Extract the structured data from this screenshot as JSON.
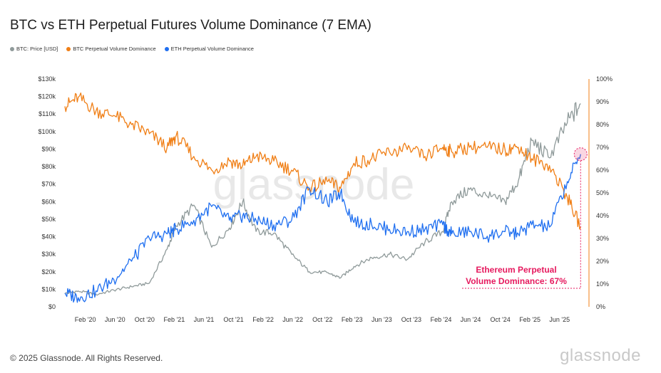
{
  "title": "BTC vs ETH Perpetual Futures Volume Dominance (7 EMA)",
  "legend": [
    {
      "label": "BTC: Price [USD]",
      "color": "#8f9a9a"
    },
    {
      "label": "BTC Perpetual Volume Dominance",
      "color": "#f07f16"
    },
    {
      "label": "ETH Perpetual Volume Dominance",
      "color": "#1f6ff0"
    }
  ],
  "watermark": "glassnode",
  "footer": "© 2025 Glassnode. All Rights Reserved.",
  "brand": "glassnode",
  "annotation": {
    "line1": "Ethereum Perpetual",
    "line2": "Volume Dominance: 67%"
  },
  "chart_data": {
    "type": "line",
    "title": "BTC vs ETH Perpetual Futures Volume Dominance (7 EMA)",
    "x_ticks": [
      "Feb '20",
      "Jun '20",
      "Oct '20",
      "Feb '21",
      "Jun '21",
      "Oct '21",
      "Feb '22",
      "Jun '22",
      "Oct '22",
      "Feb '23",
      "Jun '23",
      "Oct '23",
      "Feb '24",
      "Jun '24",
      "Oct '24",
      "Feb '25",
      "Jun '25"
    ],
    "x_range": [
      "2019-11",
      "2025-09"
    ],
    "y_left": {
      "ticks": [
        "$0",
        "$10k",
        "$20k",
        "$30k",
        "$40k",
        "$50k",
        "$60k",
        "$70k",
        "$80k",
        "$90k",
        "$100k",
        "$110k",
        "$120k",
        "$130k"
      ],
      "range": [
        0,
        130000
      ]
    },
    "y_right": {
      "ticks": [
        "0%",
        "10%",
        "20%",
        "30%",
        "40%",
        "50%",
        "60%",
        "70%",
        "80%",
        "90%",
        "100%"
      ],
      "range": [
        0,
        100
      ]
    },
    "x": [
      2019.85,
      2020.0,
      2020.2,
      2020.4,
      2020.6,
      2020.8,
      2021.0,
      2021.1,
      2021.3,
      2021.5,
      2021.7,
      2021.85,
      2022.0,
      2022.2,
      2022.4,
      2022.6,
      2022.8,
      2022.95,
      2023.1,
      2023.3,
      2023.5,
      2023.7,
      2023.9,
      2024.1,
      2024.2,
      2024.4,
      2024.6,
      2024.8,
      2024.95,
      2025.1,
      2025.3,
      2025.5,
      2025.65
    ],
    "series": [
      {
        "name": "BTC: Price [USD]",
        "axis": "left",
        "color": "#8f9a9a",
        "values": [
          7500,
          9000,
          7000,
          9500,
          11500,
          13500,
          33000,
          46000,
          58000,
          34000,
          45000,
          60000,
          43000,
          42000,
          30000,
          20000,
          19500,
          16500,
          23000,
          28000,
          30000,
          27000,
          37000,
          43000,
          60000,
          67000,
          63000,
          60000,
          72000,
          95000,
          85000,
          105000,
          116000
        ]
      },
      {
        "name": "BTC Perpetual Volume Dominance",
        "axis": "right",
        "color": "#f07f16",
        "values": [
          88,
          92,
          86,
          84,
          80,
          76,
          70,
          75,
          66,
          60,
          64,
          62,
          66,
          64,
          60,
          52,
          55,
          52,
          63,
          65,
          68,
          69,
          66,
          70,
          68,
          70,
          70,
          69,
          70,
          65,
          62,
          48,
          35
        ]
      },
      {
        "name": "ETH Perpetual Volume Dominance",
        "axis": "right",
        "color": "#1f6ff0",
        "values": [
          6,
          4,
          7,
          12,
          20,
          30,
          32,
          34,
          38,
          44,
          38,
          40,
          38,
          36,
          38,
          52,
          46,
          50,
          37,
          36,
          34,
          33,
          34,
          36,
          32,
          33,
          31,
          33,
          32,
          36,
          35,
          55,
          67
        ]
      }
    ]
  }
}
